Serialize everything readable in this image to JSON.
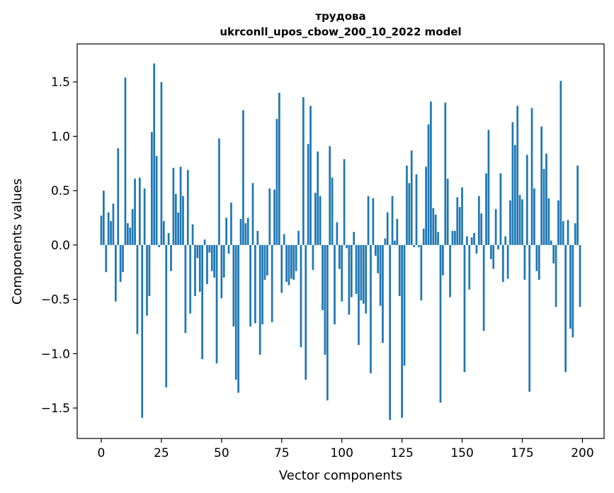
{
  "chart_data": {
    "type": "bar",
    "title": "трудова",
    "subtitle": "ukrconll_upos_cbow_200_10_2022 model",
    "xlabel": "Vector components",
    "ylabel": "Components values",
    "xlim": [
      -10,
      209
    ],
    "ylim": [
      -1.78,
      1.85
    ],
    "xticks": [
      0,
      25,
      50,
      75,
      100,
      125,
      150,
      175,
      200
    ],
    "yticks": [
      -1.5,
      -1.0,
      -0.5,
      0.0,
      0.5,
      1.0,
      1.5
    ],
    "ytick_labels": [
      "−1.5",
      "−1.0",
      "−0.5",
      "0.0",
      "0.5",
      "1.0",
      "1.5"
    ],
    "bar_color": "#1f77b4",
    "grid": false,
    "legend": null,
    "values": [
      0.27,
      0.5,
      -0.25,
      0.3,
      0.22,
      0.38,
      -0.52,
      0.89,
      -0.34,
      -0.25,
      1.54,
      0.2,
      0.16,
      0.33,
      0.61,
      -0.82,
      0.62,
      -1.59,
      0.52,
      -0.65,
      -0.47,
      1.04,
      1.67,
      0.82,
      -0.02,
      1.5,
      0.22,
      -1.31,
      0.11,
      -0.24,
      0.71,
      0.47,
      0.3,
      0.72,
      0.45,
      -0.81,
      0.69,
      -0.63,
      0.19,
      -0.47,
      -0.12,
      -0.43,
      -1.05,
      0.05,
      -0.36,
      -0.07,
      -0.24,
      -0.3,
      -1.09,
      0.98,
      -0.49,
      -0.3,
      0.25,
      -0.08,
      0.39,
      -0.75,
      -1.24,
      -1.36,
      0.24,
      1.24,
      0.2,
      0.25,
      -0.75,
      0.57,
      -0.72,
      0.13,
      -1.01,
      -0.73,
      -0.32,
      -0.28,
      0.52,
      -0.71,
      0.51,
      1.16,
      1.4,
      -0.44,
      0.1,
      -0.34,
      -0.37,
      -0.31,
      -0.32,
      -0.24,
      0.13,
      -0.94,
      1.36,
      -1.24,
      0.93,
      1.28,
      -0.23,
      0.48,
      0.86,
      0.45,
      -0.6,
      -1.01,
      -1.43,
      0.91,
      0.62,
      -0.73,
      0.21,
      -0.22,
      -0.52,
      0.79,
      -0.03,
      -0.64,
      -0.48,
      0.12,
      -0.45,
      -0.92,
      -0.51,
      -0.54,
      -0.63,
      0.45,
      -1.18,
      0.43,
      -0.1,
      -0.26,
      -0.56,
      -0.9,
      0.06,
      0.3,
      -1.61,
      0.45,
      0.04,
      0.24,
      -0.47,
      -1.59,
      -1.11,
      0.73,
      0.57,
      0.87,
      -0.02,
      0.65,
      -0.02,
      -0.51,
      0.15,
      0.72,
      1.11,
      1.32,
      0.34,
      0.28,
      0.12,
      -1.45,
      -0.28,
      1.31,
      0.61,
      -0.48,
      0.13,
      0.13,
      0.44,
      0.35,
      0.53,
      -1.17,
      0.08,
      -0.41,
      0.07,
      0.11,
      -0.08,
      0.45,
      0.29,
      -0.79,
      0.66,
      1.06,
      -0.13,
      -0.22,
      0.33,
      -0.04,
      0.66,
      -0.34,
      0.08,
      -0.31,
      0.41,
      1.13,
      0.92,
      1.28,
      0.46,
      0.42,
      -0.32,
      0.83,
      -1.35,
      1.26,
      0.52,
      -0.24,
      -0.32,
      1.09,
      0.7,
      0.84,
      0.43,
      0.04,
      -0.17,
      -0.57,
      0.41,
      1.51,
      0.22,
      -1.17,
      0.23,
      -0.77,
      -0.85,
      0.2,
      0.73,
      -0.57
    ]
  }
}
